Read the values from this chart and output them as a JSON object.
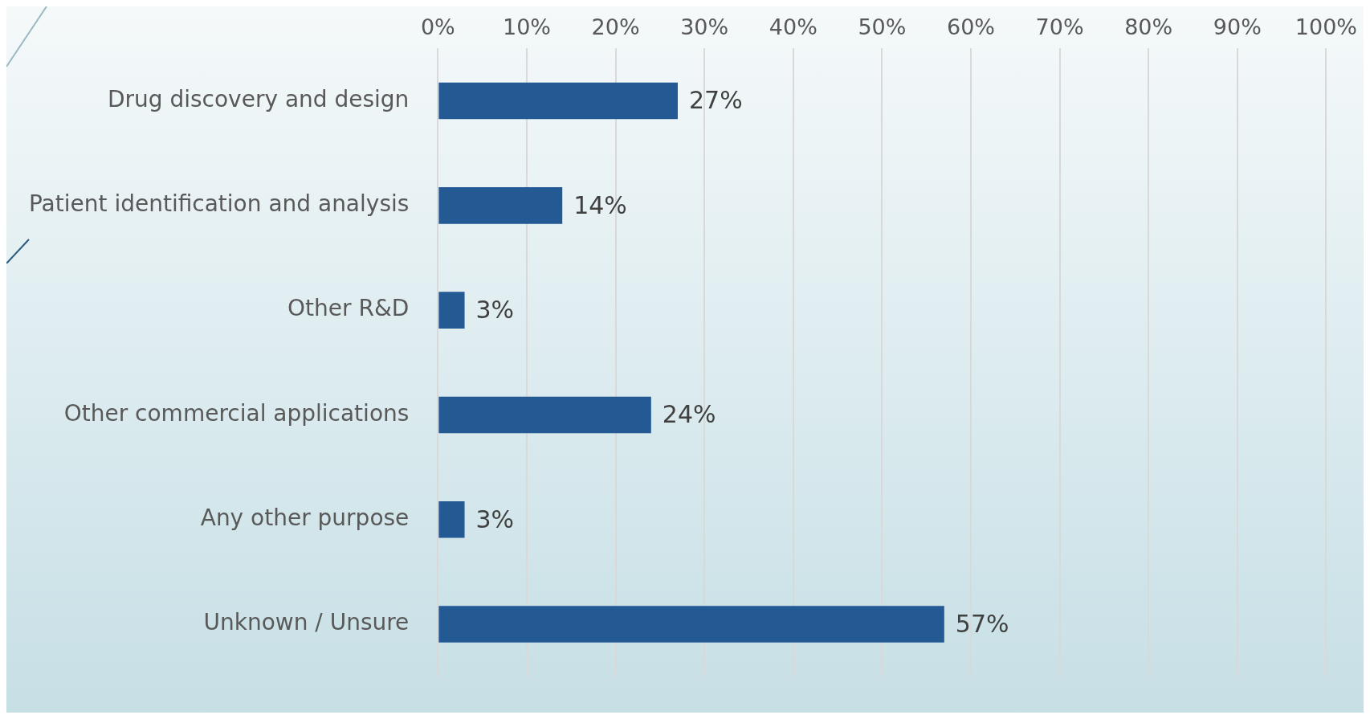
{
  "chart_data": {
    "type": "bar",
    "orientation": "horizontal",
    "categories": [
      "Drug discovery and design",
      "Patient identification and analysis",
      "Other R&D",
      "Other commercial applications",
      "Any other purpose",
      "Unknown / Unsure"
    ],
    "values": [
      27,
      14,
      3,
      24,
      3,
      57
    ],
    "value_labels": [
      "27%",
      "14%",
      "3%",
      "24%",
      "3%",
      "57%"
    ],
    "color": "#245a94",
    "xlim": [
      0,
      100
    ],
    "xticks": [
      {
        "value": 0,
        "label": "0%"
      },
      {
        "value": 10,
        "label": "10%"
      },
      {
        "value": 20,
        "label": "20%"
      },
      {
        "value": 30,
        "label": "30%"
      },
      {
        "value": 40,
        "label": "40%"
      },
      {
        "value": 50,
        "label": "50%"
      },
      {
        "value": 60,
        "label": "60%"
      },
      {
        "value": 70,
        "label": "70%"
      },
      {
        "value": 80,
        "label": "80%"
      },
      {
        "value": 90,
        "label": "90%"
      },
      {
        "value": 100,
        "label": "100%"
      }
    ],
    "grid": "x",
    "legend": false
  }
}
